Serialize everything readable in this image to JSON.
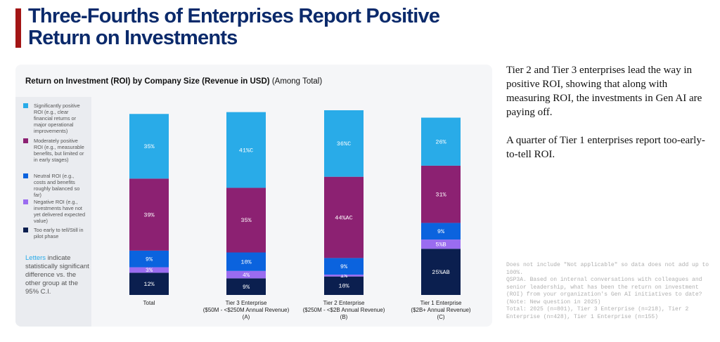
{
  "header": {
    "title": [
      "Three-Fourths of Enterprises Report Positive",
      "Return on Investments"
    ]
  },
  "chart_data": {
    "type": "stacked_bar",
    "title": "Return on Investment (ROI) by Company Size (Revenue in USD)",
    "subtitle": "(Among Total)",
    "categories": [
      [
        "Total"
      ],
      [
        "Tier 3 Enterprise",
        "($50M - <$250M Annual Revenue)",
        "(A)"
      ],
      [
        "Tier 2 Enterprise",
        "($250M - <$2B Annual Revenue)",
        "(B)"
      ],
      [
        "Tier 1 Enterprise",
        "($2B+ Annual Revenue)",
        "(C)"
      ]
    ],
    "series": [
      {
        "name": "Significantly positive ROI (e.g., clear financial returns or major operational improvements)",
        "color": "#29abe8",
        "values": [
          35,
          41,
          36,
          26
        ],
        "value_labels": [
          "35%",
          "41%C",
          "36%C",
          "26%"
        ]
      },
      {
        "name": "Moderately positive ROI (e.g., measurable benefits, but limited or in early stages)",
        "color": "#8c2172",
        "values": [
          39,
          35,
          44,
          31
        ],
        "value_labels": [
          "39%",
          "35%",
          "44%AC",
          "31%"
        ]
      },
      {
        "name": "Neutral ROI (e.g., costs and benefits roughly balanced so far)",
        "color": "#0b63de",
        "values": [
          9,
          10,
          9,
          9
        ],
        "value_labels": [
          "9%",
          "10%",
          "9%",
          "9%"
        ]
      },
      {
        "name": "Negative ROI (e.g., investments have not yet delivered expected value)",
        "color": "#9a6cf0",
        "values": [
          3,
          4,
          1,
          5
        ],
        "value_labels": [
          "3%",
          "4%",
          "1%",
          "5%B"
        ]
      },
      {
        "name": "Too early to tell/Still in pilot phase",
        "color": "#0b1f4f",
        "values": [
          12,
          9,
          10,
          25
        ],
        "value_labels": [
          "12%",
          "9%",
          "10%",
          "25%AB"
        ]
      }
    ],
    "note": {
      "highlight": "Letters",
      "text": "indicate statistically significant difference vs. the other group at the 95% C.I."
    }
  },
  "side_text": [
    "Tier 2 and Tier 3 enterprises lead the way in positive ROI, showing that along with measuring ROI, the investments in Gen AI are paying off.",
    "A quarter of Tier 1 enterprises report too-early-to-tell ROI."
  ],
  "footnote": [
    "Does not include \"Not applicable\" so data does not add up to 100%.",
    "QSP3A. Based on internal conversations with colleagues and senior leadership, what has been the return on investment (ROI) from your organization's Gen AI initiatives to date?",
    "(Note: New question in 2025)",
    "Total: 2025 (n=801), Tier 3 Enterprise (n=218), Tier 2 Enterprise (n=428), Tier 1 Enterprise (n=155)"
  ]
}
